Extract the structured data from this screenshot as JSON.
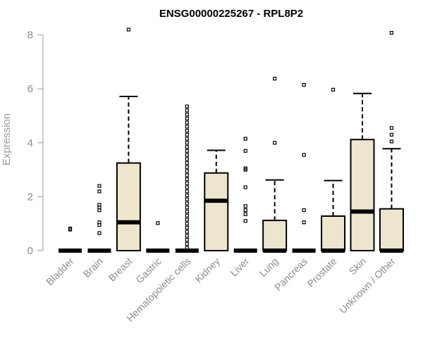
{
  "chart_data": {
    "type": "boxplot",
    "title": "ENSG00000225267 - RPL8P2",
    "ylabel": "Expression",
    "xlabel": "",
    "ylim": [
      0,
      8.2
    ],
    "yticks": [
      0,
      2,
      4,
      6,
      8
    ],
    "box_fill": "#ede6cc",
    "categories": [
      "Bladder",
      "Brain",
      "Breast",
      "Gastric",
      "Hematopoietic cells",
      "Kidney",
      "Liver",
      "Lung",
      "Pancreas",
      "Prostate",
      "Skin",
      "Unknown / Other"
    ],
    "boxes": [
      {
        "q1": 0,
        "median": 0,
        "q3": 0,
        "whisker_low": 0,
        "whisker_high": 0,
        "outliers": [
          0.78,
          0.82
        ]
      },
      {
        "q1": 0,
        "median": 0,
        "q3": 0,
        "whisker_low": 0,
        "whisker_high": 0,
        "outliers": [
          0.65,
          0.95,
          1.05,
          1.5,
          1.6,
          1.7,
          2.2,
          2.4
        ]
      },
      {
        "q1": 0,
        "median": 1.05,
        "q3": 3.25,
        "whisker_low": 0,
        "whisker_high": 5.72,
        "outliers": [
          8.2
        ]
      },
      {
        "q1": 0,
        "median": 0,
        "q3": 0,
        "whisker_low": 0,
        "whisker_high": 0,
        "outliers": [
          1.02
        ]
      },
      {
        "q1": 0,
        "median": 0,
        "q3": 0,
        "whisker_low": 0,
        "whisker_high": 0,
        "outliers": [
          0.1,
          0.25,
          0.4,
          0.55,
          0.7,
          0.85,
          1.0,
          1.15,
          1.3,
          1.45,
          1.6,
          1.75,
          1.9,
          2.05,
          2.2,
          2.35,
          2.5,
          2.65,
          2.8,
          2.95,
          3.1,
          3.25,
          3.4,
          3.55,
          3.7,
          3.85,
          4.0,
          4.15,
          4.3,
          4.45,
          4.6,
          4.75,
          4.9,
          5.05,
          5.2,
          5.35
        ]
      },
      {
        "q1": 0,
        "median": 1.85,
        "q3": 2.88,
        "whisker_low": 0,
        "whisker_high": 3.72,
        "outliers": []
      },
      {
        "q1": 0,
        "median": 0,
        "q3": 0,
        "whisker_low": 0,
        "whisker_high": 0,
        "outliers": [
          1.1,
          1.35,
          1.5,
          1.65,
          2.35,
          3.0,
          3.05,
          3.7,
          4.15
        ]
      },
      {
        "q1": 0,
        "median": 0,
        "q3": 1.12,
        "whisker_low": 0,
        "whisker_high": 2.62,
        "outliers": [
          4.0,
          6.38
        ]
      },
      {
        "q1": 0,
        "median": 0,
        "q3": 0,
        "whisker_low": 0,
        "whisker_high": 0,
        "outliers": [
          1.05,
          1.5,
          3.55,
          6.15
        ]
      },
      {
        "q1": 0,
        "median": 0,
        "q3": 1.28,
        "whisker_low": 0,
        "whisker_high": 2.6,
        "outliers": [
          5.97
        ]
      },
      {
        "q1": 0,
        "median": 1.45,
        "q3": 4.12,
        "whisker_low": 0,
        "whisker_high": 5.83,
        "outliers": []
      },
      {
        "q1": 0,
        "median": 0,
        "q3": 1.55,
        "whisker_low": 0,
        "whisker_high": 3.78,
        "outliers": [
          4.05,
          4.3,
          4.55,
          8.08
        ]
      }
    ]
  }
}
